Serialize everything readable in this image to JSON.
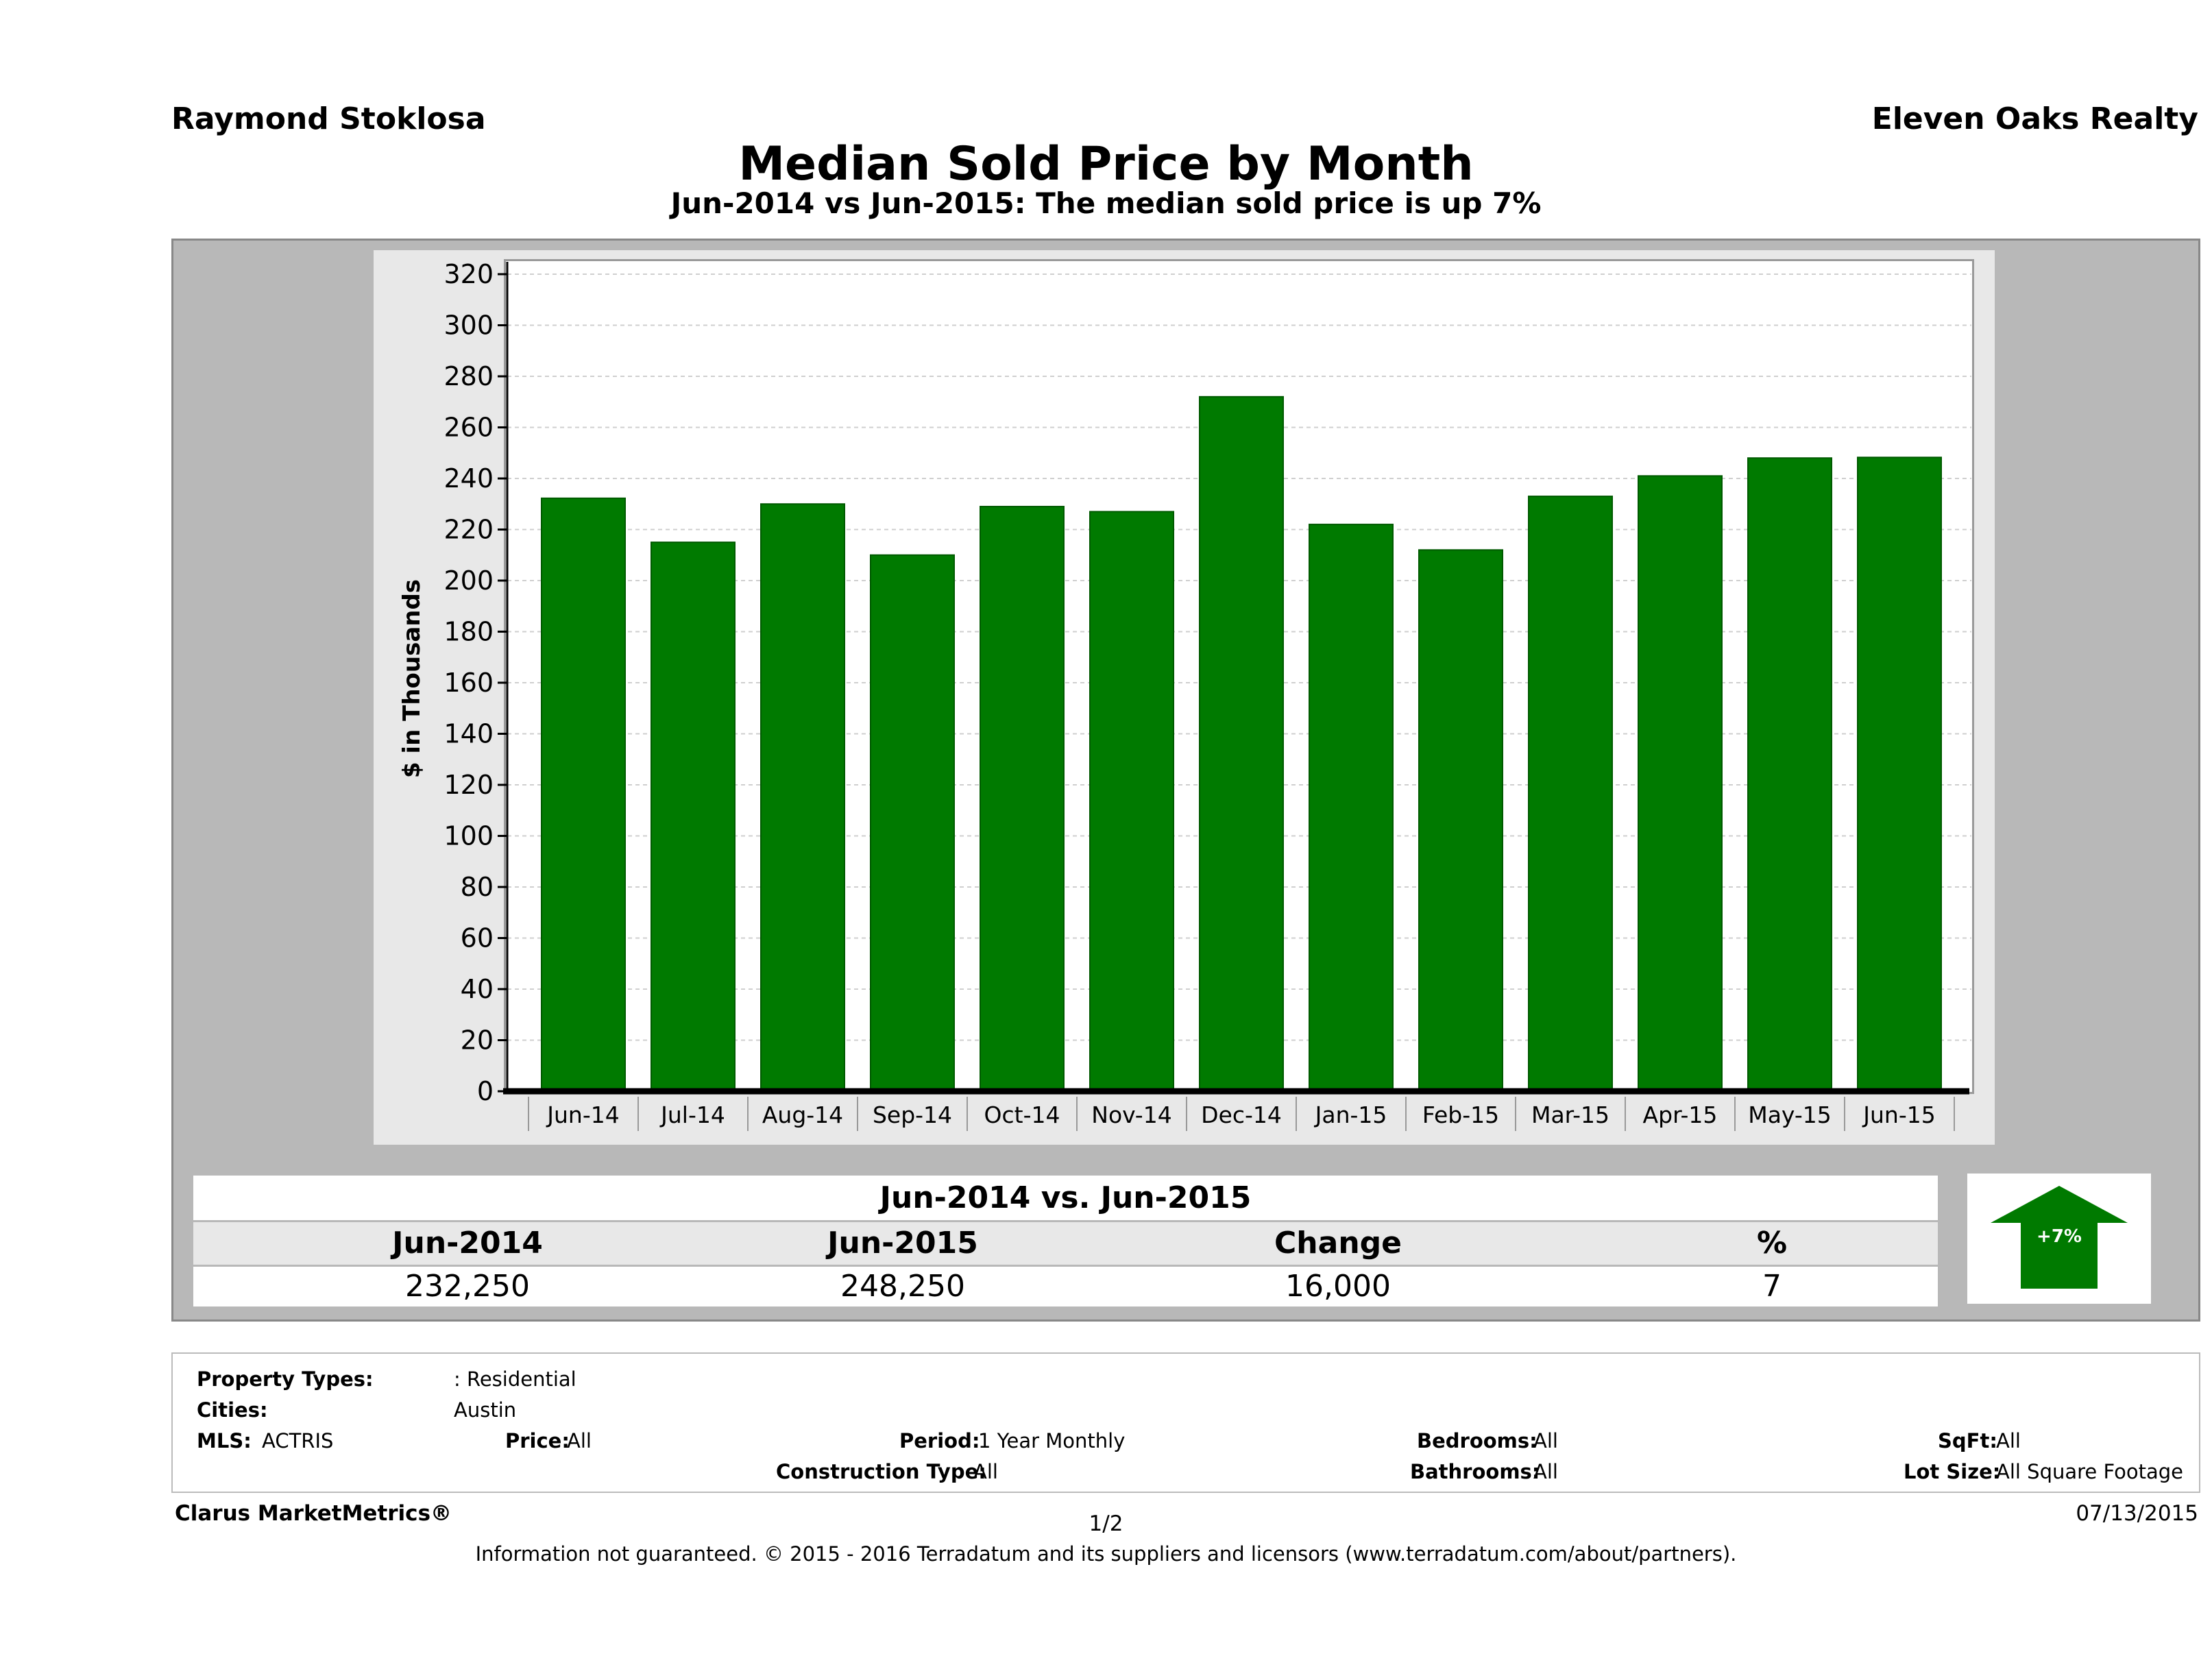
{
  "header": {
    "agent": "Raymond Stoklosa",
    "company": "Eleven Oaks Realty",
    "title": "Median Sold Price by Month",
    "subtitle": "Jun-2014 vs Jun-2015: The median sold price is up 7%"
  },
  "chart_data": {
    "type": "bar",
    "ylabel": "$ in Thousands",
    "xlabel": "",
    "ylim": [
      0,
      320
    ],
    "y_ticks": [
      0,
      20,
      40,
      60,
      80,
      100,
      120,
      140,
      160,
      180,
      200,
      220,
      240,
      260,
      280,
      300,
      320
    ],
    "grid": true,
    "categories": [
      "Jun-14",
      "Jul-14",
      "Aug-14",
      "Sep-14",
      "Oct-14",
      "Nov-14",
      "Dec-14",
      "Jan-15",
      "Feb-15",
      "Mar-15",
      "Apr-15",
      "May-15",
      "Jun-15"
    ],
    "values": [
      232.25,
      215,
      230,
      210,
      229,
      227,
      272,
      222,
      212,
      233,
      241,
      248,
      248.25
    ],
    "bar_color": "#007a00"
  },
  "comparison": {
    "title": "Jun-2014 vs. Jun-2015",
    "headers": [
      "Jun-2014",
      "Jun-2015",
      "Change",
      "%"
    ],
    "values": [
      "232,250",
      "248,250",
      "16,000",
      "7"
    ],
    "badge": "+7%",
    "badge_color": "#007a00",
    "badge_icon": "up-arrow-icon"
  },
  "criteria": {
    "property_types_label": "Property Types:",
    "property_types_value": ": Residential",
    "cities_label": "Cities:",
    "cities_value": "Austin",
    "mls_label": "MLS:",
    "mls_value": "ACTRIS",
    "price_label": "Price:",
    "price_value": "All",
    "period_label": "Period:",
    "period_value": "1 Year Monthly",
    "construction_label": "Construction Type:",
    "construction_value": "All",
    "bedrooms_label": "Bedrooms:",
    "bedrooms_value": "All",
    "bathrooms_label": "Bathrooms:",
    "bathrooms_value": "All",
    "sqft_label": "SqFt:",
    "sqft_value": "All",
    "lotsize_label": "Lot Size:",
    "lotsize_value": "All Square Footage"
  },
  "footer": {
    "brand": "Clarus MarketMetrics®",
    "page": "1/2",
    "date": "07/13/2015",
    "disclaimer": "Information not guaranteed. © 2015 - 2016 Terradatum and its suppliers and licensors (www.terradatum.com/about/partners)."
  }
}
